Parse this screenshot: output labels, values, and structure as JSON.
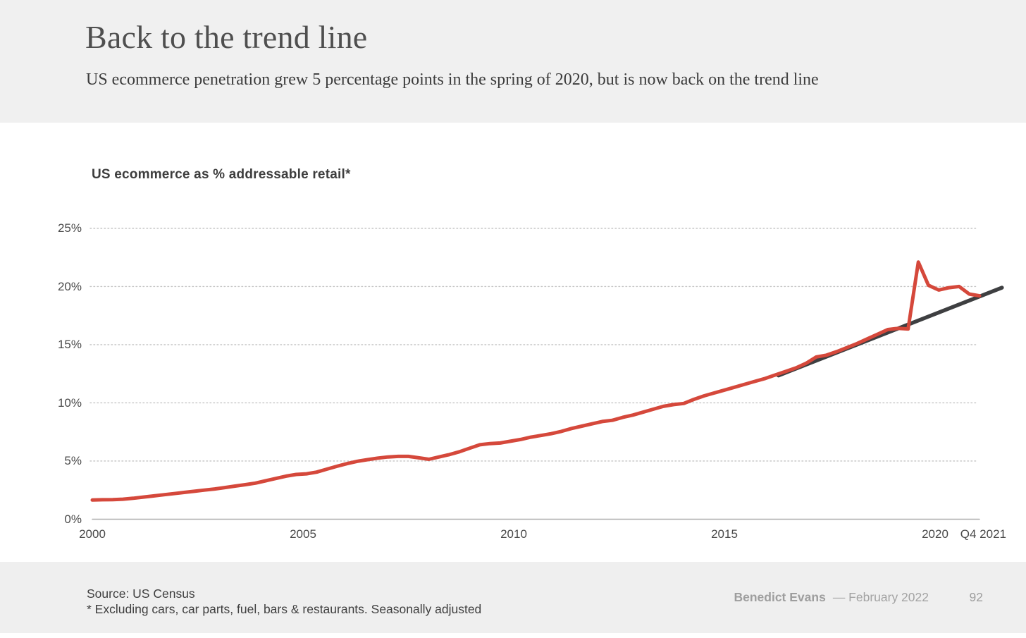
{
  "header": {
    "title": "Back to the trend line",
    "subtitle": "US ecommerce penetration grew 5 percentage points in the spring of 2020, but is now back on the trend line"
  },
  "footer": {
    "source_line1": "Source: US Census",
    "source_line2": "* Excluding cars, car parts, fuel, bars & restaurants. Seasonally adjusted",
    "author": "Benedict Evans",
    "credit_rest": "— February 2022",
    "page_number": "92"
  },
  "colors": {
    "ecommerce_line": "#d5483b",
    "trend_line": "#3e3f41",
    "header_bg": "#f0f0f0",
    "footer_bg": "#efefef",
    "gridline": "#c4c4c4",
    "axis_line": "#adadad",
    "tick_text": "#4a4a4a"
  },
  "chart_data": {
    "type": "line",
    "title": "US ecommerce as % addressable retail*",
    "xlabel": "",
    "ylabel": "",
    "ylim": [
      0,
      25
    ],
    "grid": "horizontal dotted",
    "legend": "none",
    "y_ticks": [
      {
        "value": 0,
        "label": "0%"
      },
      {
        "value": 5,
        "label": "5%"
      },
      {
        "value": 10,
        "label": "10%"
      },
      {
        "value": 15,
        "label": "15%"
      },
      {
        "value": 20,
        "label": "20%"
      },
      {
        "value": 25,
        "label": "25%"
      }
    ],
    "x_ticks": [
      {
        "t": 2000,
        "label": "2000"
      },
      {
        "t": 2005,
        "label": "2005"
      },
      {
        "t": 2010,
        "label": "2010"
      },
      {
        "t": 2015,
        "label": "2015"
      },
      {
        "t": 2020,
        "label": "2020"
      },
      {
        "t": 2021.75,
        "label": "Q4 2021"
      }
    ],
    "series": [
      {
        "name": "US ecommerce as % addressable retail (quarterly)",
        "color": "#d5483b",
        "period": "quarterly",
        "t_start": 2000.0,
        "t_step": 0.25,
        "values": [
          1.65,
          1.67,
          1.68,
          1.72,
          1.8,
          1.9,
          2.0,
          2.1,
          2.2,
          2.3,
          2.4,
          2.5,
          2.6,
          2.72,
          2.85,
          2.97,
          3.1,
          3.3,
          3.5,
          3.7,
          3.85,
          3.9,
          4.05,
          4.3,
          4.55,
          4.78,
          4.98,
          5.12,
          5.25,
          5.35,
          5.4,
          5.4,
          5.28,
          5.15,
          5.35,
          5.55,
          5.8,
          6.1,
          6.4,
          6.5,
          6.55,
          6.7,
          6.85,
          7.05,
          7.2,
          7.35,
          7.55,
          7.8,
          8.0,
          8.2,
          8.4,
          8.5,
          8.75,
          8.95,
          9.2,
          9.45,
          9.7,
          9.85,
          9.95,
          10.3,
          10.6,
          10.85,
          11.1,
          11.35,
          11.6,
          11.85,
          12.1,
          12.4,
          12.7,
          13.0,
          13.4,
          13.95,
          14.1,
          14.4,
          14.75,
          15.1,
          15.5,
          15.9,
          16.3,
          16.4,
          16.35,
          22.1,
          20.1,
          19.7,
          19.9,
          20.0,
          19.35,
          19.2
        ]
      },
      {
        "name": "Long-term trend line",
        "color": "#3e3f41",
        "points": [
          {
            "t": 2016.82,
            "v": 12.35
          },
          {
            "t": 2022.3,
            "v": 19.9
          }
        ]
      }
    ]
  }
}
